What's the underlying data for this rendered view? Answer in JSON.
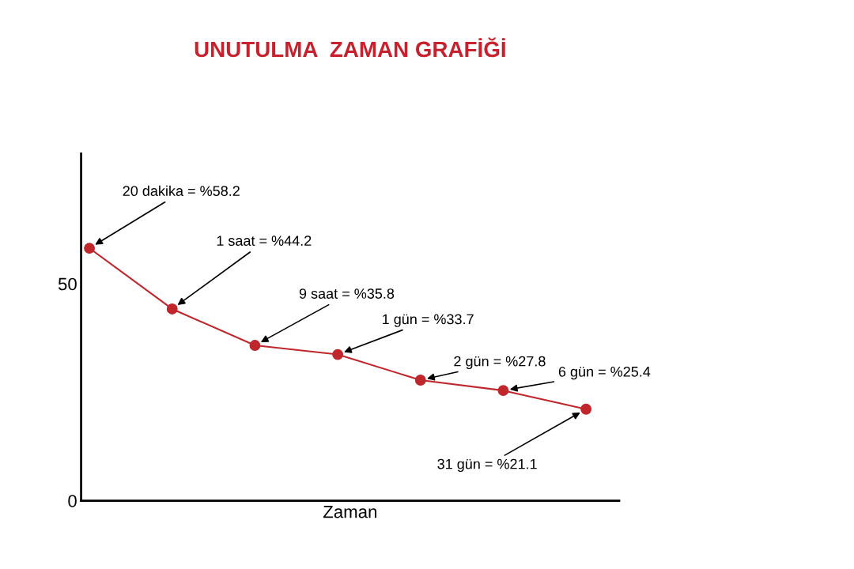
{
  "chart_data": {
    "type": "line",
    "title": "UNUTULMA  ZAMAN GRAFİĞİ",
    "xlabel": "Zaman",
    "categories": [
      null,
      null,
      null,
      null,
      null,
      null,
      null
    ],
    "series": [
      {
        "color": "#c0272d",
        "values": [
          58.2,
          44.2,
          35.8,
          33.7,
          27.8,
          25.4,
          21.1
        ],
        "value_labels": [
          "20 dakika = %58.2",
          "1 saat = %44.2",
          "9 saat = %35.8",
          "1 gün = %33.7",
          "2 gün = %27.8",
          "6 gün = %25.4",
          "31 gün = %21.1"
        ]
      }
    ],
    "ylim": [
      0,
      80
    ],
    "yticks": [
      0,
      50
    ],
    "tick_labels": "y",
    "marker": "circle",
    "grid": false,
    "legend": false
  }
}
